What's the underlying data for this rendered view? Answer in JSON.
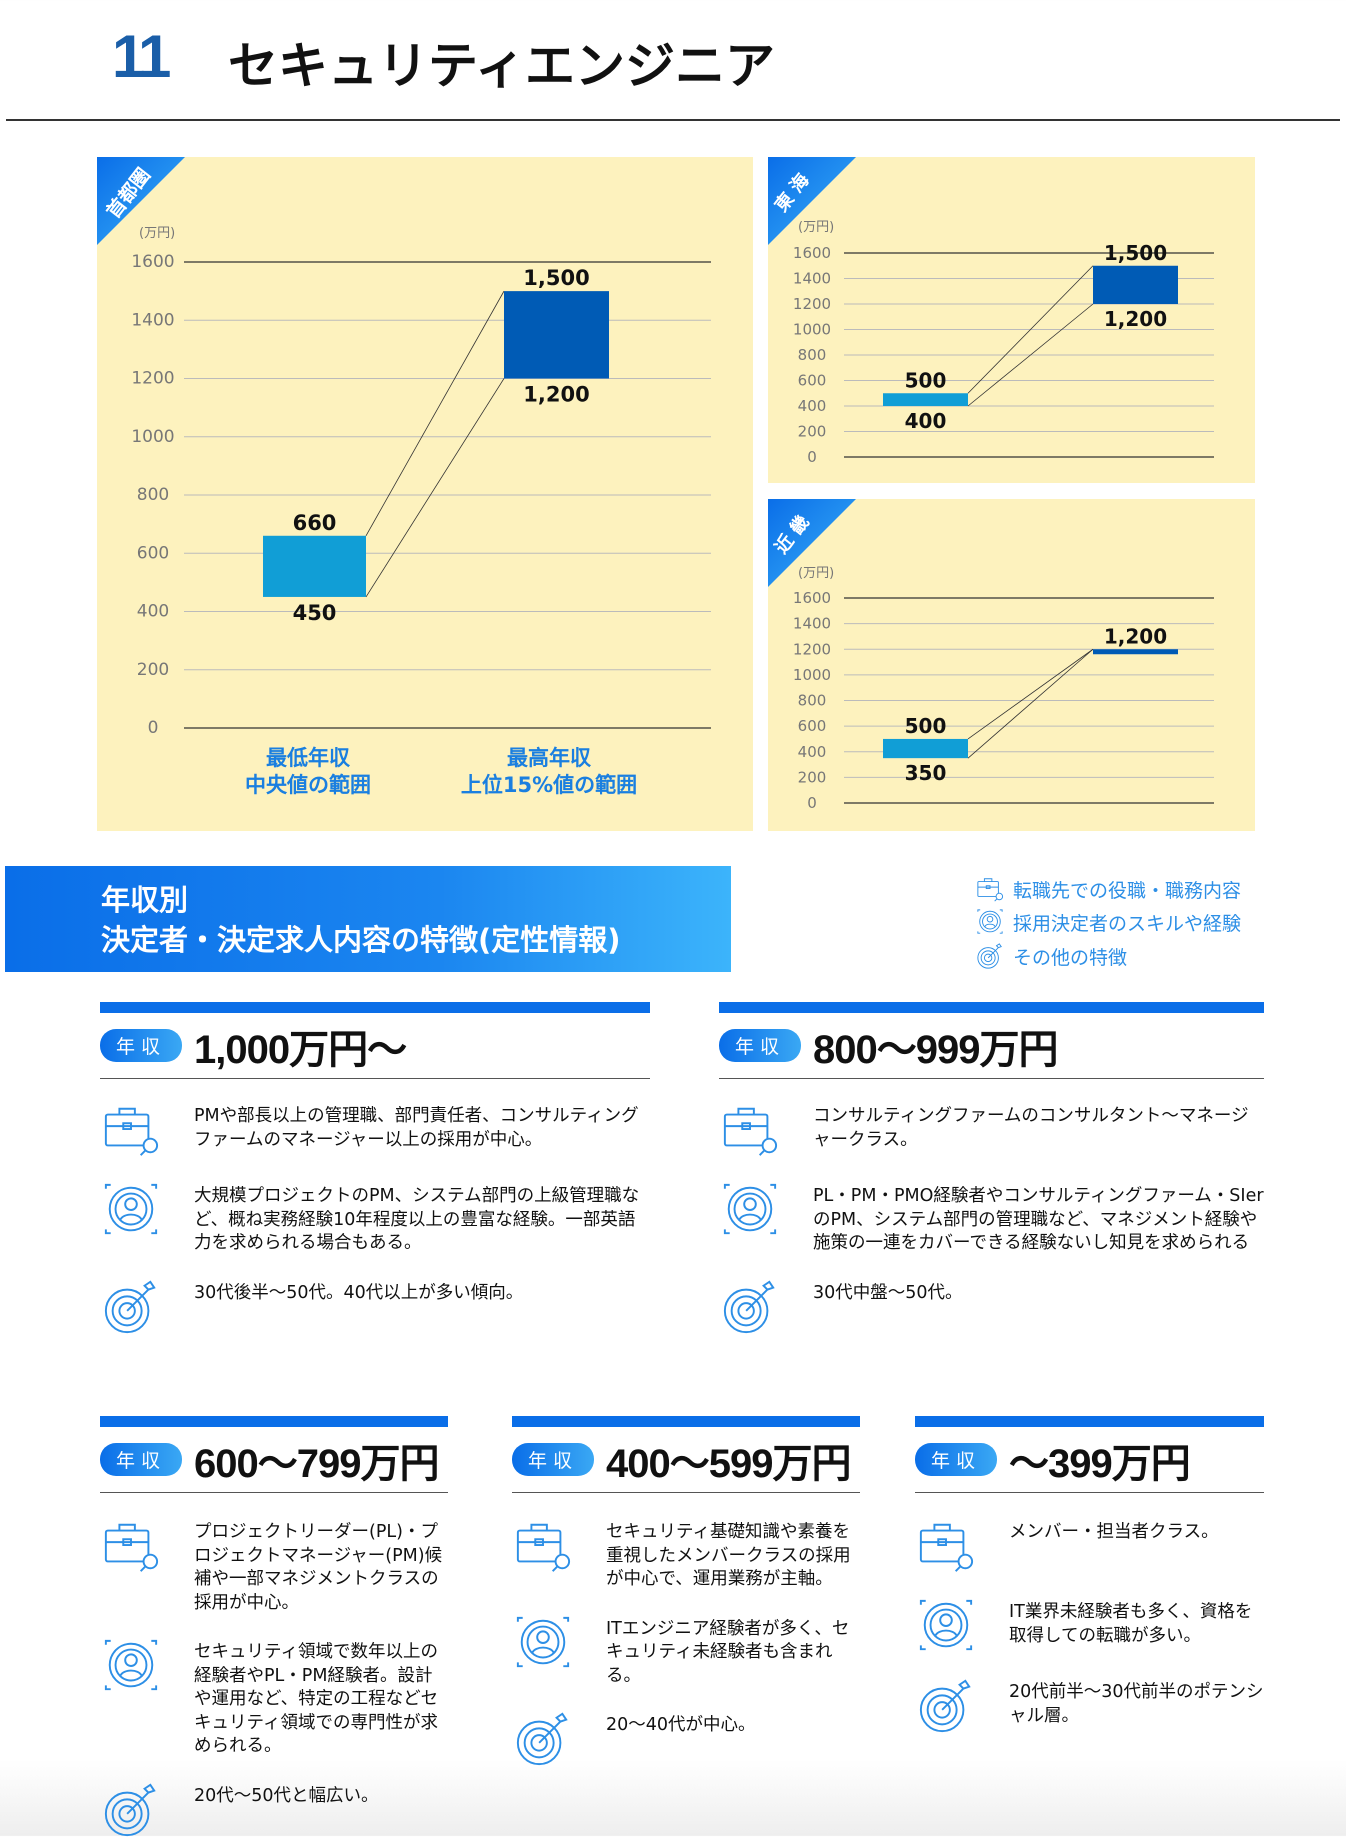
{
  "header": {
    "number": "11",
    "title": "セキュリティエンジニア"
  },
  "chart_unit": "(万円)",
  "x_categories": [
    "最低年収\n中央値の範囲",
    "最高年収\n上位15%値の範囲"
  ],
  "chart_data": [
    {
      "type": "bar",
      "title": "首都圏",
      "ylabel": "(万円)",
      "ylim": [
        0,
        1600
      ],
      "yticks": [
        0,
        200,
        400,
        600,
        800,
        1000,
        1200,
        1400,
        1600
      ],
      "categories": [
        "最低年収 中央値の範囲",
        "最高年収 上位15%値の範囲"
      ],
      "ranges": [
        {
          "low": 450,
          "high": 660
        },
        {
          "low": 1200,
          "high": 1500
        }
      ],
      "grid": true
    },
    {
      "type": "bar",
      "title": "東 海",
      "ylabel": "(万円)",
      "ylim": [
        0,
        1600
      ],
      "yticks": [
        0,
        200,
        400,
        600,
        800,
        1000,
        1200,
        1400,
        1600
      ],
      "categories": [
        "最低年収 中央値の範囲",
        "最高年収 上位15%値の範囲"
      ],
      "ranges": [
        {
          "low": 400,
          "high": 500
        },
        {
          "low": 1200,
          "high": 1500
        }
      ],
      "grid": true
    },
    {
      "type": "bar",
      "title": "近 畿",
      "ylabel": "(万円)",
      "ylim": [
        0,
        1600
      ],
      "yticks": [
        0,
        200,
        400,
        600,
        800,
        1000,
        1200,
        1400,
        1600
      ],
      "categories": [
        "最低年収 中央値の範囲",
        "最高年収 上位15%値の範囲"
      ],
      "ranges": [
        {
          "low": 350,
          "high": 500
        },
        {
          "low": 1200,
          "high": 1200
        }
      ],
      "grid": true
    }
  ],
  "colors": {
    "low_bar": "#119ed6",
    "high_bar": "#005bb5",
    "accent": "#0a6ee8",
    "panel": "#fdf2be"
  },
  "banner": {
    "line1": "年収別",
    "line2": "決定者・決定求人内容の特徴(定性情報)"
  },
  "legend": [
    {
      "icon": "briefcase-icon",
      "label": "転職先での役職・職務内容"
    },
    {
      "icon": "person-target-icon",
      "label": "採用決定者のスキルや経験"
    },
    {
      "icon": "target-icon",
      "label": "その他の特徴"
    }
  ],
  "pill_label": "年収",
  "sections": [
    {
      "amount": "1,000万円〜",
      "items": [
        "PMや部長以上の管理職、部門責任者、コンサルティングファームのマネージャー以上の採用が中心。",
        "大規模プロジェクトのPM、システム部門の上級管理職など、概ね実務経験10年程度以上の豊富な経験。一部英語力を求められる場合もある。",
        "30代後半〜50代。40代以上が多い傾向。"
      ]
    },
    {
      "amount": "800〜999万円",
      "items": [
        "コンサルティングファームのコンサルタント〜マネージャークラス。",
        "PL・PM・PMO経験者やコンサルティングファーム・SIerのPM、システム部門の管理職など、マネジメント経験や施策の一連をカバーできる経験ないし知見を求められる",
        "30代中盤〜50代。"
      ]
    },
    {
      "amount": "600〜799万円",
      "items": [
        "プロジェクトリーダー(PL)・プロジェクトマネージャー(PM)候補や一部マネジメントクラスの採用が中心。",
        "セキュリティ領域で数年以上の経験者やPL・PM経験者。設計や運用など、特定の工程などセキュリティ領域での専門性が求められる。",
        "20代〜50代と幅広い。"
      ]
    },
    {
      "amount": "400〜599万円",
      "items": [
        "セキュリティ基礎知識や素養を重視したメンバークラスの採用が中心で、運用業務が主軸。",
        "ITエンジニア経験者が多く、セキュリティ未経験者も含まれる。",
        "20〜40代が中心。"
      ]
    },
    {
      "amount": "〜399万円",
      "items": [
        "メンバー・担当者クラス。",
        "IT業界未経験者も多く、資格を取得しての転職が多い。",
        "20代前半〜30代前半のポテンシャル層。"
      ]
    }
  ]
}
